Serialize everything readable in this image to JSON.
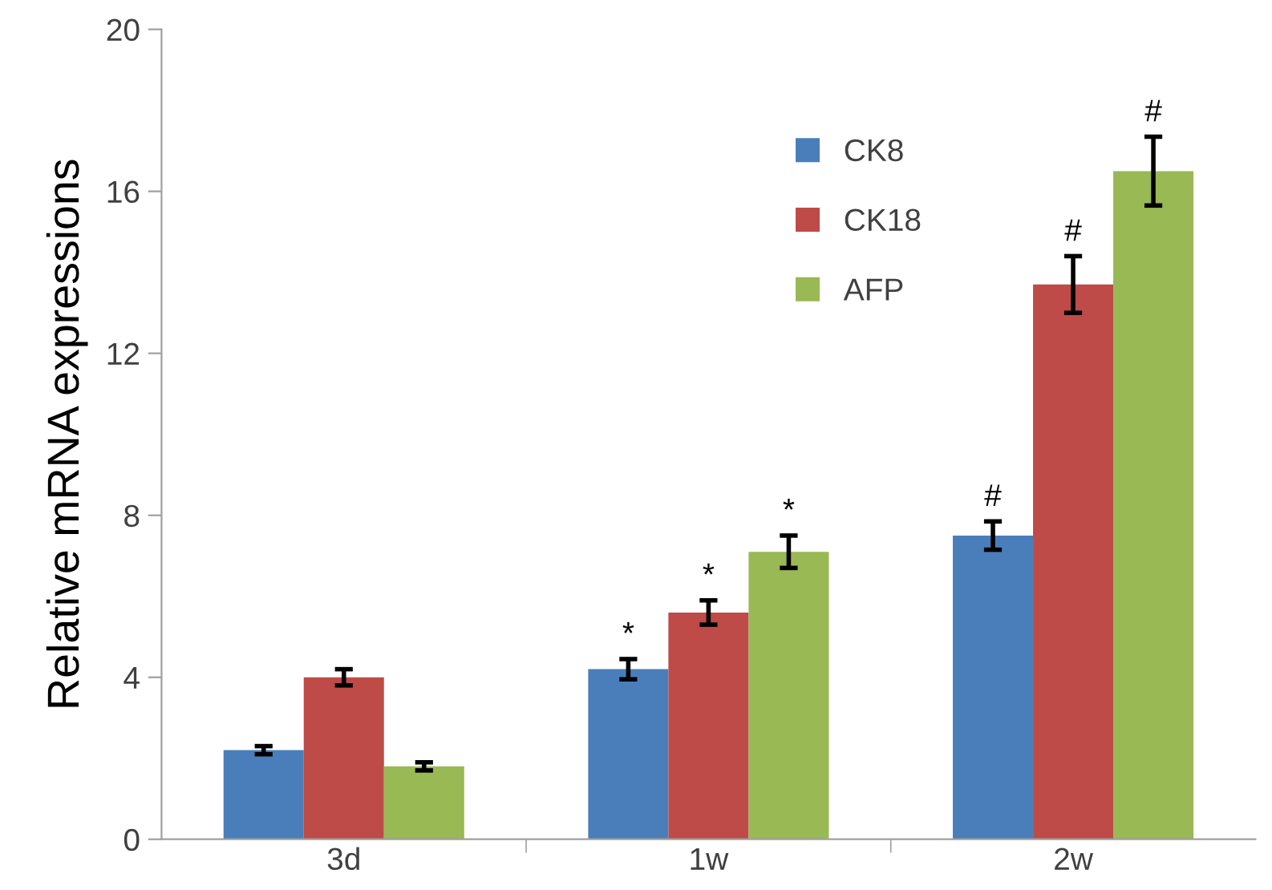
{
  "chart_data": {
    "type": "bar",
    "ylabel": "Relative mRNA expressions",
    "categories": [
      "3d",
      "1w",
      "2w"
    ],
    "series": [
      {
        "name": "CK8",
        "color": "#4a7ebb",
        "values": [
          2.2,
          4.2,
          7.5
        ],
        "errors": [
          0.1,
          0.25,
          0.35
        ],
        "value_labels": [
          null,
          "*",
          "#"
        ]
      },
      {
        "name": "CK18",
        "color": "#be4b48",
        "values": [
          4.0,
          5.6,
          13.7
        ],
        "errors": [
          0.2,
          0.3,
          0.7
        ],
        "value_labels": [
          null,
          "*",
          "#"
        ]
      },
      {
        "name": "AFP",
        "color": "#98b954",
        "values": [
          1.8,
          7.1,
          16.5
        ],
        "errors": [
          0.1,
          0.4,
          0.85
        ],
        "value_labels": [
          null,
          "*",
          "#"
        ]
      }
    ],
    "ylim": [
      0,
      20
    ],
    "yticks": [
      0,
      4,
      8,
      12,
      16,
      20
    ],
    "grid": false,
    "legend": "top"
  }
}
